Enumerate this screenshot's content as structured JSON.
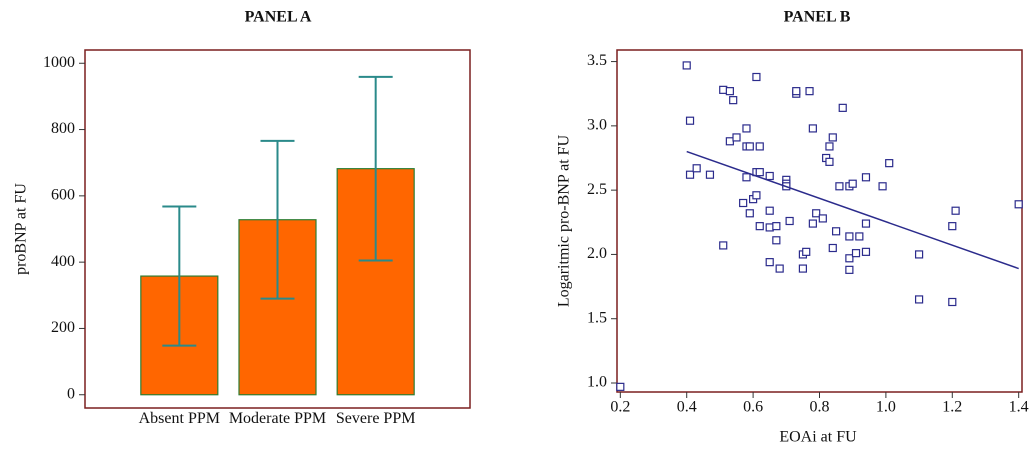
{
  "chart_data": [
    {
      "type": "bar",
      "title": "PANEL A",
      "y_label": "proBNP at FU",
      "categories": [
        "Absent PPM",
        "Moderate PPM",
        "Severe PPM"
      ],
      "values": [
        358,
        528,
        682
      ],
      "errors": [
        210,
        238,
        277
      ],
      "color": "#ff6600",
      "edge_color": "#2e7d32",
      "error_color": "#2a8a8a",
      "frame_color": "#7a1f1f",
      "ylim": [
        -40,
        1040
      ],
      "yticks": [
        0,
        200,
        400,
        600,
        800,
        1000
      ]
    },
    {
      "type": "scatter",
      "title": "PANEL B",
      "x_label": "EOAi at FU",
      "y_label": "Logaritmic pro-BNP at FU",
      "color": "#2b2b8c",
      "frame_color": "#7a1f1f",
      "x": [
        0.4,
        0.41,
        0.41,
        0.43,
        0.47,
        0.51,
        0.53,
        0.54,
        0.53,
        0.55,
        0.51,
        0.58,
        0.58,
        0.59,
        0.58,
        0.57,
        0.6,
        0.61,
        0.61,
        0.62,
        0.62,
        0.61,
        0.65,
        0.65,
        0.62,
        0.65,
        0.67,
        0.67,
        0.65,
        0.68,
        0.59,
        0.7,
        0.7,
        0.7,
        0.71,
        0.73,
        0.73,
        0.77,
        0.78,
        0.79,
        0.78,
        0.75,
        0.76,
        0.75,
        0.81,
        0.82,
        0.83,
        0.83,
        0.84,
        0.85,
        0.84,
        0.86,
        0.87,
        0.89,
        0.9,
        0.89,
        0.89,
        0.91,
        0.89,
        0.92,
        0.94,
        0.94,
        0.94,
        0.99,
        1.01,
        1.1,
        1.1,
        1.21,
        1.2,
        1.2,
        1.4,
        0.2
      ],
      "values": [
        3.47,
        3.04,
        2.62,
        2.67,
        2.62,
        3.28,
        3.27,
        3.2,
        2.88,
        2.91,
        2.07,
        2.98,
        2.84,
        2.84,
        2.6,
        2.4,
        2.43,
        2.46,
        2.64,
        2.64,
        2.84,
        3.38,
        2.61,
        2.34,
        2.22,
        2.21,
        2.22,
        2.11,
        1.94,
        1.89,
        2.32,
        2.58,
        2.55,
        2.53,
        2.26,
        3.25,
        3.27,
        3.27,
        2.98,
        2.32,
        2.24,
        2.0,
        2.02,
        1.89,
        2.28,
        2.75,
        2.72,
        2.84,
        2.91,
        2.18,
        2.05,
        2.53,
        3.14,
        2.53,
        2.55,
        2.14,
        1.97,
        2.01,
        1.88,
        2.14,
        2.02,
        2.24,
        2.6,
        2.53,
        2.71,
        2.0,
        1.65,
        2.34,
        2.22,
        1.63,
        2.39,
        0.97
      ],
      "regression_line": {
        "x": [
          0.4,
          1.4
        ],
        "values": [
          2.8,
          1.89
        ]
      },
      "xlim": [
        0.19,
        1.41
      ],
      "xticks": [
        0.2,
        0.4,
        0.6,
        0.8,
        {
          "value": 1.0,
          "label": "1.0"
        },
        1.2,
        1.4
      ],
      "ylim": [
        0.93,
        3.59
      ],
      "yticks": [
        {
          "value": 1.0,
          "label": "1.0"
        },
        1.5,
        {
          "value": 2.0,
          "label": "2.0"
        },
        2.5,
        {
          "value": 3.0,
          "label": "3.0"
        },
        3.5
      ]
    }
  ]
}
